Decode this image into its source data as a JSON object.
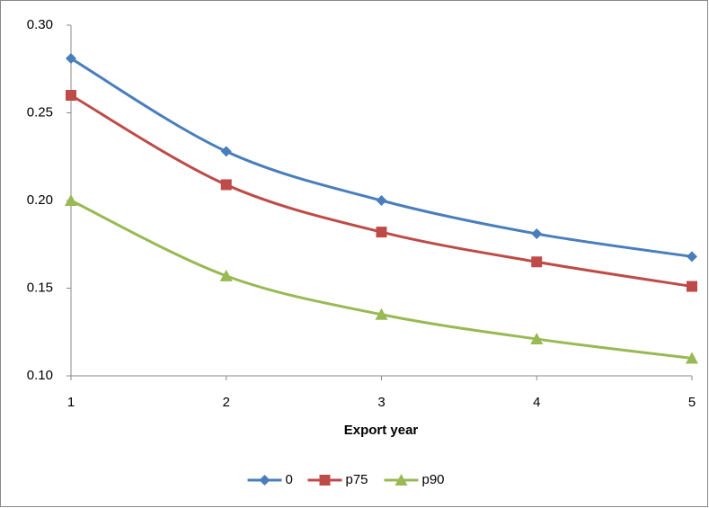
{
  "chart_data": {
    "type": "line",
    "smooth": true,
    "x_label": "Export year",
    "x": [
      1,
      2,
      3,
      4,
      5
    ],
    "xlim": [
      1,
      5
    ],
    "xticks": [
      1,
      2,
      3,
      4,
      5
    ],
    "ylim": [
      0.1,
      0.3
    ],
    "yticks": [
      {
        "value": 0.1,
        "label": "0.10"
      },
      0.15,
      {
        "value": 0.2,
        "label": "0.20"
      },
      0.25,
      {
        "value": 0.3,
        "label": "0.30"
      }
    ],
    "grid": false,
    "legend": "bottom",
    "series": [
      {
        "name": "0",
        "color": "#4a7ebb",
        "marker": "diamond",
        "values": [
          0.281,
          0.228,
          0.2,
          0.181,
          0.168
        ]
      },
      {
        "name": "p75",
        "color": "#be4b48",
        "marker": "square",
        "values": [
          0.26,
          0.209,
          0.182,
          0.165,
          0.151
        ]
      },
      {
        "name": "p90",
        "color": "#98b954",
        "marker": "triangle",
        "values": [
          0.2,
          0.157,
          0.135,
          0.121,
          0.11
        ]
      }
    ]
  }
}
